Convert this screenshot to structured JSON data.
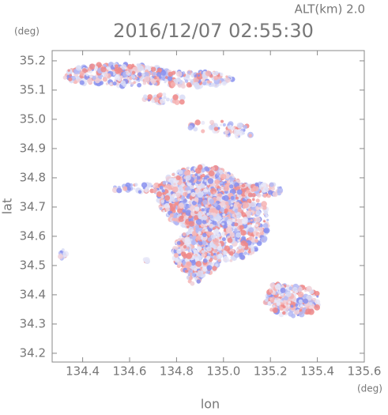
{
  "chart_data": {
    "type": "scatter",
    "title": "2016/12/07 02:55:30",
    "subtitle": "ALT(km) 2.0",
    "y_unit": "(deg)",
    "x_unit": "(deg)",
    "x_label": "lon",
    "y_label": "lat",
    "xlim": [
      134.27,
      135.6
    ],
    "ylim": [
      34.17,
      35.235
    ],
    "xticks": [
      134.4,
      134.6,
      134.8,
      {
        "value": 135,
        "label": "135.0"
      },
      135.2,
      135.4,
      135.6
    ],
    "yticks": [
      34.2,
      34.3,
      34.4,
      34.5,
      34.6,
      34.7,
      34.8,
      34.9,
      {
        "value": 35,
        "label": "35.0"
      },
      35.1,
      35.2
    ]
  }
}
